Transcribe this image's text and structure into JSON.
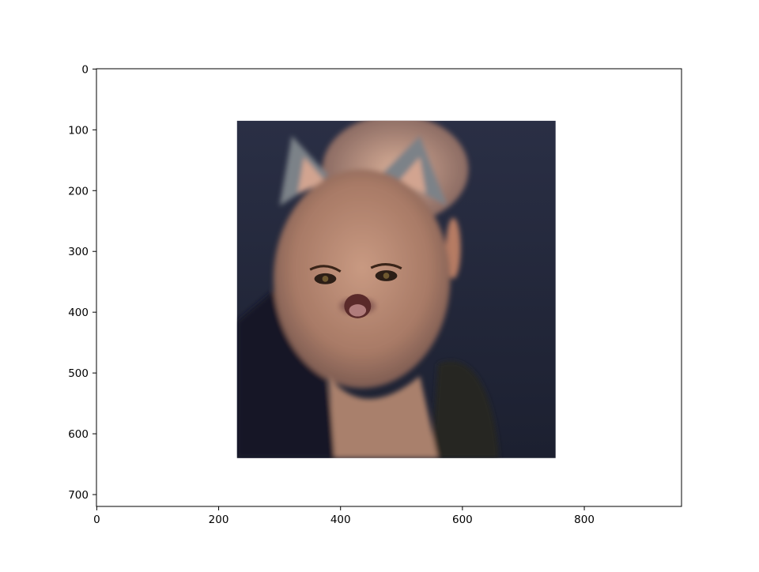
{
  "chart_data": {
    "type": "image",
    "extent": [
      230,
      753,
      640,
      85
    ],
    "xlim": [
      -0.5,
      959.5
    ],
    "ylim": [
      719.5,
      -0.5
    ],
    "xticks": [
      0,
      200,
      400,
      600,
      800
    ],
    "yticks": [
      0,
      100,
      200,
      300,
      400,
      500,
      600,
      700
    ]
  }
}
